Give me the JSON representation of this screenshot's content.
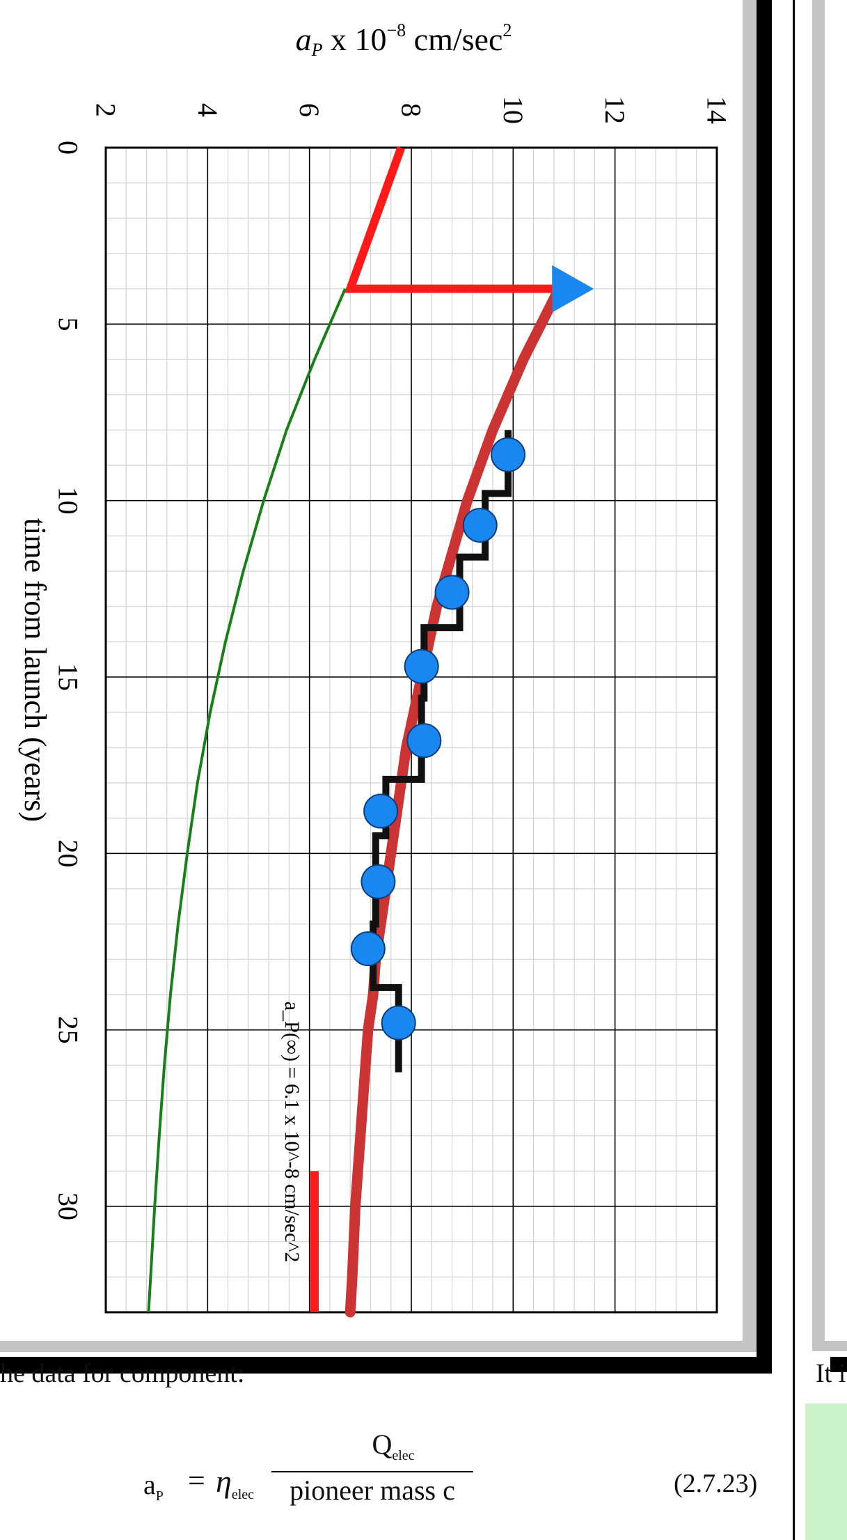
{
  "chart_data": {
    "type": "line",
    "title": "",
    "ylabel": "a_P x 10^-8 cm/sec^2",
    "xlabel": "time from launch (years)",
    "x_ticks": [
      "0",
      "5",
      "10",
      "15",
      "20",
      "25",
      "30"
    ],
    "y_ticks": [
      "2",
      "4",
      "6",
      "8",
      "10",
      "12",
      "14"
    ],
    "xlim": [
      0,
      33
    ],
    "ylim": [
      2,
      14
    ],
    "grid": true,
    "annotation": "a_P(∞) = 6.1 x 10^-8 cm/sec^2",
    "series": [
      {
        "color": "#cc3333",
        "style": "model-curve",
        "x": [
          4.0,
          5,
          6,
          7,
          8,
          9,
          10,
          11,
          12,
          13,
          14,
          15,
          16,
          17,
          18,
          19,
          20,
          21,
          22,
          23,
          24,
          25,
          26,
          27,
          28,
          29,
          30,
          31,
          32,
          33
        ],
        "y": [
          10.9,
          10.55,
          10.2,
          9.9,
          9.6,
          9.35,
          9.1,
          8.9,
          8.7,
          8.5,
          8.35,
          8.2,
          8.05,
          7.9,
          7.8,
          7.7,
          7.6,
          7.5,
          7.4,
          7.3,
          7.25,
          7.15,
          7.1,
          7.05,
          7.0,
          6.95,
          6.9,
          6.87,
          6.84,
          6.8
        ]
      },
      {
        "color": "#ff1a1a",
        "style": "early-segment",
        "x": [
          0,
          4.0,
          4.0
        ],
        "y": [
          7.8,
          6.8,
          10.9
        ]
      },
      {
        "color": "#1a7f1a",
        "style": "thin-curve",
        "x": [
          4.0,
          6,
          8,
          10,
          12,
          14,
          16,
          18,
          20,
          22,
          24,
          26,
          28,
          30,
          32,
          33
        ],
        "y": [
          6.7,
          6.1,
          5.55,
          5.1,
          4.7,
          4.35,
          4.05,
          3.8,
          3.6,
          3.42,
          3.27,
          3.15,
          3.05,
          2.96,
          2.88,
          2.84
        ]
      },
      {
        "color": "#111111",
        "style": "step",
        "x": [
          8.0,
          9.8,
          9.8,
          11.6,
          11.6,
          13.6,
          13.6,
          15.6,
          15.6,
          17.9,
          17.9,
          19.5,
          19.5,
          22.0,
          22.0,
          23.8,
          23.8,
          26.2
        ],
        "y": [
          9.9,
          9.9,
          9.45,
          9.45,
          8.95,
          8.95,
          8.25,
          8.25,
          8.2,
          8.2,
          7.5,
          7.5,
          7.3,
          7.3,
          7.25,
          7.25,
          7.75,
          7.75
        ]
      },
      {
        "color": "#1a86f0",
        "style": "markers",
        "x": [
          8.7,
          10.7,
          12.6,
          14.7,
          16.8,
          18.8,
          20.8,
          22.7,
          24.8
        ],
        "y": [
          9.9,
          9.35,
          8.8,
          8.2,
          8.25,
          7.4,
          7.35,
          7.15,
          7.75
        ]
      },
      {
        "color": "#ff1a1a",
        "style": "asymptote-marker",
        "x": [
          29,
          33
        ],
        "y": [
          6.1,
          6.1
        ]
      }
    ]
  },
  "caption_left": "he data for component:",
  "caption_right": "It i",
  "equation": {
    "lhs": "a",
    "lhs_sub": "P",
    "equals": "=",
    "eta": "η",
    "eta_sub": "elec",
    "numerator": "Q",
    "numerator_sub": "elec",
    "denominator": "pioneer mass c",
    "number": "(2.7.23)"
  },
  "colors": {
    "frame": "#000000",
    "shadow": "#c4c4c4",
    "right_panel": "#c4c4c4",
    "green_box": "#ccf2c9"
  }
}
